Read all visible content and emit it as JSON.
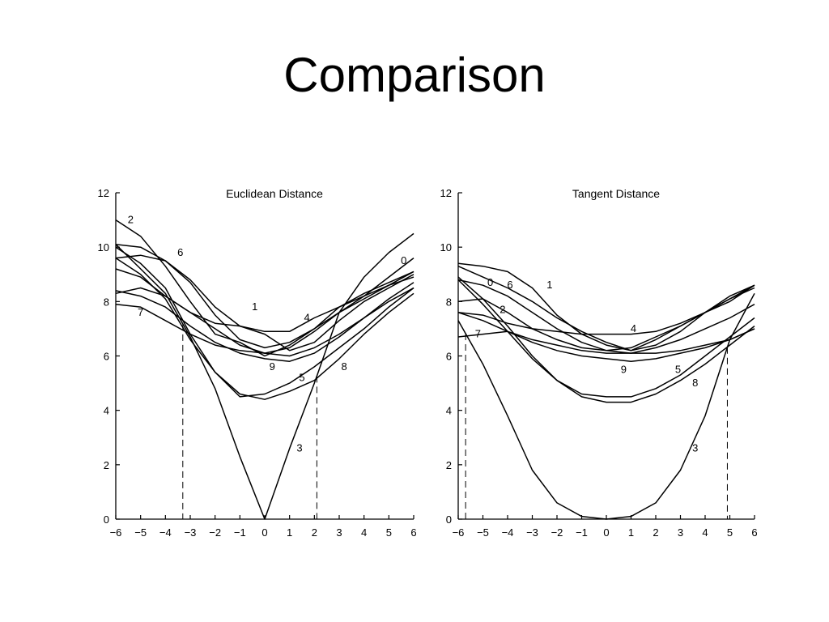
{
  "slide": {
    "title": "Comparison"
  },
  "chart_data": [
    {
      "type": "line",
      "title": "Euclidean Distance",
      "xlabel": "",
      "ylabel": "",
      "xlim": [
        -6,
        6
      ],
      "ylim": [
        0,
        12
      ],
      "xticks": [
        -6,
        -5,
        -4,
        -3,
        -2,
        -1,
        0,
        1,
        2,
        3,
        4,
        5,
        6
      ],
      "xtick_labels": [
        "−6",
        "−5",
        "−4",
        "−3",
        "−2",
        "−1",
        "0",
        "1",
        "2",
        "3",
        "4",
        "5",
        "6"
      ],
      "yticks": [
        0,
        2,
        4,
        6,
        8,
        10,
        12
      ],
      "ytick_labels": [
        "0",
        "2",
        "4",
        "6",
        "8",
        "10",
        "12"
      ],
      "grid": false,
      "thresholds": [
        -3.3,
        2.1
      ],
      "x": [
        -6,
        -5,
        -4,
        -3,
        -2,
        -1,
        0,
        1,
        2,
        3,
        4,
        5,
        6
      ],
      "series": [
        {
          "name": "0",
          "values": [
            9.2,
            8.9,
            8.2,
            7.6,
            7.0,
            6.4,
            6.1,
            6.3,
            6.9,
            7.6,
            8.2,
            8.9,
            9.6
          ],
          "label_at": [
            5.6,
            9.5
          ]
        },
        {
          "name": "1",
          "values": [
            9.6,
            9.7,
            9.5,
            8.8,
            7.8,
            7.1,
            6.8,
            6.2,
            6.5,
            7.3,
            8.0,
            8.5,
            9.0
          ],
          "label_at": [
            -0.4,
            7.8
          ]
        },
        {
          "name": "2",
          "values": [
            11.0,
            10.4,
            9.3,
            8.0,
            6.8,
            6.5,
            6.0,
            6.4,
            7.0,
            7.8,
            8.3,
            8.7,
            9.1
          ],
          "label_at": [
            -5.4,
            11.0
          ]
        },
        {
          "name": "3",
          "values": [
            10.1,
            9.2,
            8.3,
            6.7,
            4.8,
            2.3,
            0.0,
            2.6,
            5.0,
            7.6,
            8.9,
            9.8,
            10.5
          ],
          "label_at": [
            1.4,
            2.6
          ]
        },
        {
          "name": "4",
          "values": [
            8.3,
            8.5,
            8.2,
            7.6,
            7.2,
            7.1,
            6.9,
            6.9,
            7.4,
            7.8,
            8.2,
            8.6,
            8.9
          ],
          "label_at": [
            1.7,
            7.4
          ]
        },
        {
          "name": "5",
          "values": [
            9.6,
            9.0,
            8.1,
            6.6,
            5.4,
            4.5,
            4.6,
            5.0,
            5.6,
            6.3,
            7.0,
            7.8,
            8.5
          ],
          "label_at": [
            1.5,
            5.2
          ]
        },
        {
          "name": "6",
          "values": [
            10.1,
            10.0,
            9.5,
            8.7,
            7.5,
            6.6,
            6.3,
            6.5,
            7.0,
            7.6,
            8.1,
            8.6,
            9.1
          ],
          "label_at": [
            -3.4,
            9.8
          ]
        },
        {
          "name": "7",
          "values": [
            7.9,
            7.8,
            7.3,
            6.8,
            6.4,
            6.2,
            6.1,
            6.0,
            6.3,
            6.8,
            7.4,
            8.0,
            8.5
          ],
          "label_at": [
            -5.0,
            7.6
          ]
        },
        {
          "name": "8",
          "values": [
            10.0,
            9.4,
            8.5,
            6.8,
            5.4,
            4.6,
            4.4,
            4.7,
            5.1,
            5.9,
            6.8,
            7.6,
            8.3
          ],
          "label_at": [
            3.2,
            5.6
          ]
        },
        {
          "name": "9",
          "values": [
            8.4,
            8.2,
            7.8,
            7.1,
            6.5,
            6.1,
            5.9,
            5.8,
            6.1,
            6.7,
            7.4,
            8.1,
            8.7
          ],
          "label_at": [
            0.3,
            5.6
          ]
        }
      ]
    },
    {
      "type": "line",
      "title": "Tangent Distance",
      "xlabel": "",
      "ylabel": "",
      "xlim": [
        -6,
        6
      ],
      "ylim": [
        0,
        12
      ],
      "xticks": [
        -6,
        -5,
        -4,
        -3,
        -2,
        -1,
        0,
        1,
        2,
        3,
        4,
        5,
        6
      ],
      "xtick_labels": [
        "−6",
        "−5",
        "−4",
        "−3",
        "−2",
        "−1",
        "0",
        "1",
        "2",
        "3",
        "4",
        "5",
        "6"
      ],
      "yticks": [
        0,
        2,
        4,
        6,
        8,
        10,
        12
      ],
      "ytick_labels": [
        "0",
        "2",
        "4",
        "6",
        "8",
        "10",
        "12"
      ],
      "grid": false,
      "thresholds": [
        -5.7,
        4.9
      ],
      "x": [
        -6,
        -5,
        -4,
        -3,
        -2,
        -1,
        0,
        1,
        2,
        3,
        4,
        5,
        6
      ],
      "series": [
        {
          "name": "0",
          "values": [
            8.8,
            8.6,
            8.2,
            7.6,
            7.0,
            6.5,
            6.2,
            6.3,
            6.7,
            7.1,
            7.6,
            8.1,
            8.6
          ],
          "label_at": [
            -4.7,
            8.7
          ]
        },
        {
          "name": "1",
          "values": [
            9.4,
            9.3,
            9.1,
            8.5,
            7.5,
            6.8,
            6.4,
            6.2,
            6.4,
            6.9,
            7.6,
            8.1,
            8.5
          ],
          "label_at": [
            -2.3,
            8.6
          ]
        },
        {
          "name": "2",
          "values": [
            8.0,
            8.1,
            7.6,
            7.0,
            6.6,
            6.3,
            6.2,
            6.1,
            6.3,
            6.6,
            7.0,
            7.4,
            7.9
          ],
          "label_at": [
            -4.2,
            7.7
          ]
        },
        {
          "name": "3",
          "values": [
            7.3,
            5.7,
            3.8,
            1.8,
            0.6,
            0.1,
            0.0,
            0.1,
            0.6,
            1.8,
            3.8,
            6.6,
            8.3
          ],
          "label_at": [
            3.6,
            2.6
          ]
        },
        {
          "name": "4",
          "values": [
            7.6,
            7.5,
            7.2,
            7.0,
            6.9,
            6.8,
            6.8,
            6.8,
            6.9,
            7.2,
            7.6,
            8.0,
            8.6
          ],
          "label_at": [
            1.1,
            7.0
          ]
        },
        {
          "name": "5",
          "values": [
            8.9,
            8.1,
            7.1,
            6.0,
            5.1,
            4.6,
            4.5,
            4.5,
            4.8,
            5.3,
            6.0,
            6.7,
            7.4
          ],
          "label_at": [
            2.9,
            5.5
          ]
        },
        {
          "name": "6",
          "values": [
            9.3,
            8.9,
            8.5,
            8.0,
            7.4,
            6.9,
            6.5,
            6.2,
            6.6,
            7.1,
            7.6,
            8.2,
            8.6
          ],
          "label_at": [
            -3.9,
            8.6
          ]
        },
        {
          "name": "7",
          "values": [
            6.7,
            6.8,
            6.9,
            6.6,
            6.4,
            6.2,
            6.1,
            6.1,
            6.1,
            6.2,
            6.4,
            6.6,
            7.0
          ],
          "label_at": [
            -5.2,
            6.8
          ]
        },
        {
          "name": "8",
          "values": [
            8.8,
            7.9,
            6.9,
            5.9,
            5.1,
            4.5,
            4.3,
            4.3,
            4.6,
            5.1,
            5.7,
            6.4,
            7.1
          ],
          "label_at": [
            3.6,
            5.0
          ]
        },
        {
          "name": "9",
          "values": [
            7.6,
            7.3,
            6.9,
            6.5,
            6.2,
            6.0,
            5.9,
            5.8,
            5.9,
            6.1,
            6.3,
            6.6,
            7.0
          ],
          "label_at": [
            0.7,
            5.5
          ]
        }
      ]
    }
  ]
}
